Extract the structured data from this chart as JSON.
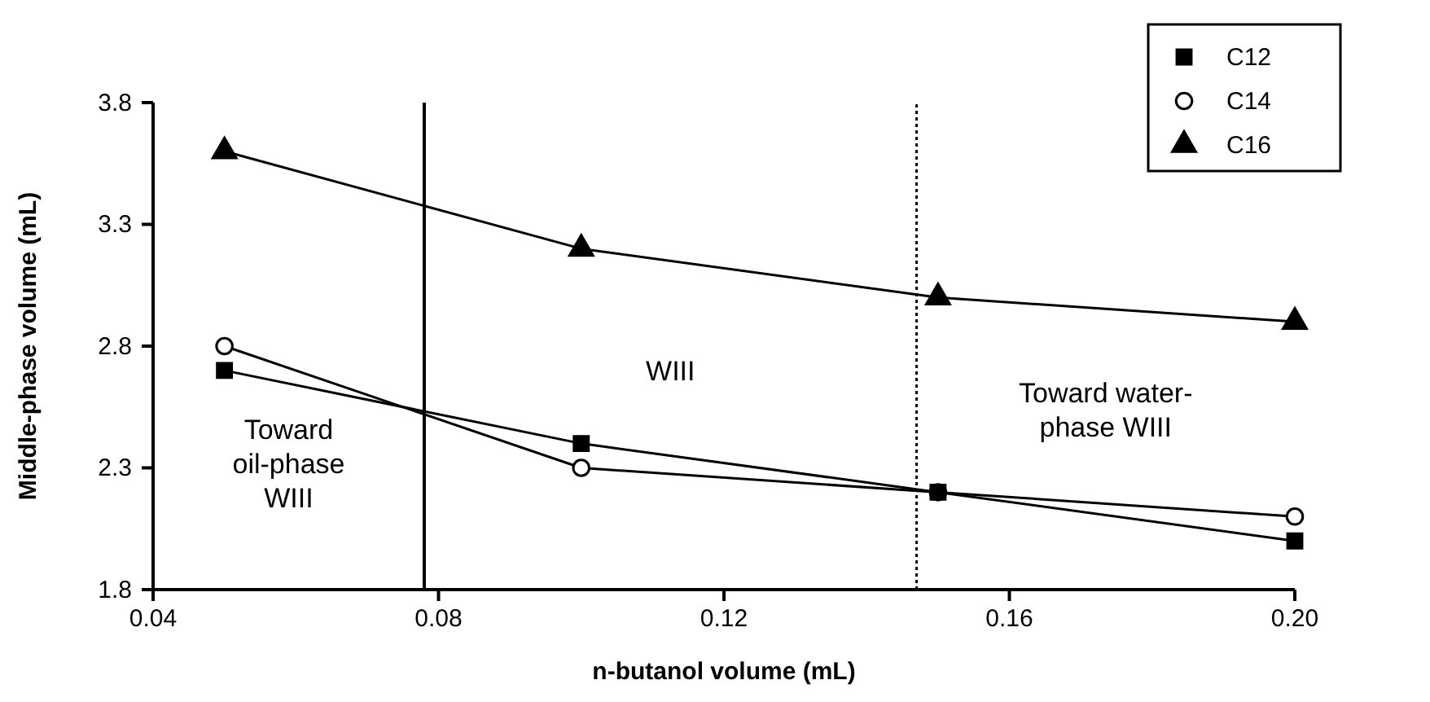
{
  "chart_data": {
    "type": "line",
    "xlabel": "n-butanol volume (mL)",
    "ylabel": "Middle-phase volume (mL)",
    "x": [
      0.05,
      0.1,
      0.15,
      0.2
    ],
    "series": [
      {
        "name": "C12",
        "color": "#000000",
        "marker": "square",
        "values": [
          2.7,
          2.4,
          2.2,
          2.0
        ]
      },
      {
        "name": "C14",
        "color": "#000000",
        "marker": "circle",
        "values": [
          2.8,
          2.3,
          2.2,
          2.1
        ]
      },
      {
        "name": "C16",
        "color": "#000000",
        "marker": "triangle",
        "values": [
          3.6,
          3.2,
          3.0,
          2.9
        ]
      }
    ],
    "xlim": [
      0.04,
      0.2
    ],
    "xticks": [
      {
        "value": 0.04,
        "label": "0.04"
      },
      {
        "value": 0.08,
        "label": "0.08"
      },
      {
        "value": 0.12,
        "label": "0.12"
      },
      {
        "value": 0.16,
        "label": "0.16"
      },
      {
        "value": 0.2,
        "label": "0.20"
      }
    ],
    "ylim": [
      1.8,
      3.8
    ],
    "yticks": [
      {
        "value": 1.8,
        "label": "1.8"
      },
      {
        "value": 2.3,
        "label": "2.3"
      },
      {
        "value": 2.8,
        "label": "2.8"
      },
      {
        "value": 3.3,
        "label": "3.3"
      },
      {
        "value": 3.8,
        "label": "3.8"
      }
    ],
    "ref_lines": [
      {
        "axis": "x",
        "value": 0.078,
        "line_style": "solid"
      },
      {
        "axis": "x",
        "value": 0.147,
        "line_style": "dotted"
      }
    ],
    "annotations": [
      "Toward\noil-phase\nWIII",
      "WIII",
      "Toward water-\nphase WIII"
    ],
    "legend": "top right",
    "grid": false
  }
}
